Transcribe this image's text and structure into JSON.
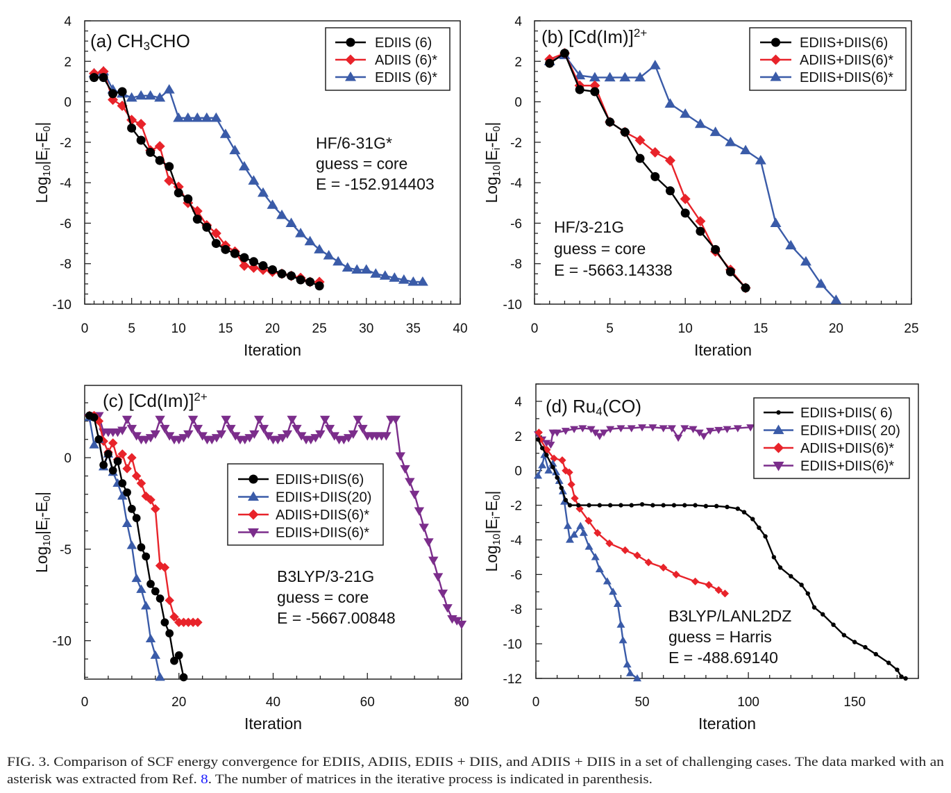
{
  "chart_data": [
    {
      "type": "line",
      "panel": "(a)",
      "title": {
        "pre": "(a) CH",
        "sub": "3",
        "post": "CHO"
      },
      "xlabel": "Iteration",
      "ylabel": {
        "a": "Log",
        "b": "10",
        "c": "|E",
        "d": "i",
        "e": "-E",
        "f": "0",
        "g": "|"
      },
      "xlim": [
        0,
        40
      ],
      "ylim": [
        -10,
        4
      ],
      "xticks": [
        "0",
        "5",
        "10",
        "15",
        "20",
        "25",
        "30",
        "35",
        "40"
      ],
      "yticks": [
        "-10",
        "-8",
        "-6",
        "-4",
        "-2",
        "0",
        "2",
        "4"
      ],
      "annotation": [
        "HF/6-31G*",
        "guess = core",
        "E = -152.914403"
      ],
      "legend_position": "top-right",
      "series": [
        {
          "name": "EDIIS (6)",
          "color": "#000000",
          "marker": "circle",
          "y": [
            1.2,
            1.2,
            0.4,
            0.5,
            -1.3,
            -1.9,
            -2.5,
            -2.9,
            -3.2,
            -4.5,
            -4.8,
            -5.8,
            -6.2,
            -7.0,
            -7.3,
            -7.5,
            -7.7,
            -7.9,
            -8.1,
            -8.3,
            -8.5,
            -8.6,
            -8.8,
            -8.9,
            -9.1
          ]
        },
        {
          "name": "ADIIS (6)*",
          "color": "#e8232a",
          "marker": "diamond",
          "y": [
            1.4,
            1.5,
            0.1,
            -0.2,
            -0.9,
            -1.1,
            -2.4,
            -2.2,
            -3.9,
            -4.2,
            -5.0,
            -5.4,
            -6.1,
            -6.5,
            -7.1,
            -7.4,
            -8.1,
            -8.2,
            -8.3,
            -8.4,
            -8.5,
            -8.6,
            -8.7,
            -8.9,
            -8.9
          ]
        },
        {
          "name": "EDIIS (6)*",
          "color": "#3a5ba8",
          "marker": "triangle",
          "y": [
            1.4,
            1.5,
            0.6,
            0.4,
            0.2,
            0.3,
            0.3,
            0.2,
            0.6,
            -0.8,
            -0.8,
            -0.8,
            -0.8,
            -0.8,
            -1.6,
            -2.4,
            -3.2,
            -3.9,
            -4.5,
            -5.1,
            -5.6,
            -6.0,
            -6.5,
            -6.9,
            -7.3,
            -7.6,
            -7.9,
            -8.2,
            -8.3,
            -8.3,
            -8.5,
            -8.6,
            -8.7,
            -8.8,
            -8.9,
            -8.9
          ]
        }
      ]
    },
    {
      "type": "line",
      "panel": "(b)",
      "title": {
        "pre": "(b) [Cd(Im)]",
        "sup": "2+"
      },
      "xlabel": "Iteration",
      "ylabel": {
        "a": "Log",
        "b": "10",
        "c": "|E",
        "d": "i",
        "e": "-E",
        "f": "0",
        "g": "|"
      },
      "xlim": [
        0,
        25
      ],
      "ylim": [
        -10,
        4
      ],
      "xticks": [
        "0",
        "5",
        "10",
        "15",
        "20",
        "25"
      ],
      "yticks": [
        "-10",
        "-8",
        "-6",
        "-4",
        "-2",
        "0",
        "2",
        "4"
      ],
      "annotation": [
        "HF/3-21G",
        "guess = core",
        "E = -5663.14338"
      ],
      "legend_position": "top-right",
      "series": [
        {
          "name": "EDIIS+DIIS(6)",
          "color": "#000000",
          "marker": "circle",
          "y": [
            1.9,
            2.4,
            0.6,
            0.5,
            -1.0,
            -1.5,
            -2.8,
            -3.7,
            -4.4,
            -5.5,
            -6.4,
            -7.3,
            -8.4,
            -9.2
          ]
        },
        {
          "name": "ADIIS+DIIS(6)*",
          "color": "#e8232a",
          "marker": "diamond",
          "y": [
            2.1,
            2.4,
            0.8,
            0.8,
            -1.0,
            -1.5,
            -1.9,
            -2.5,
            -2.9,
            -4.8,
            -5.9,
            -7.4,
            -8.3,
            -9.2
          ]
        },
        {
          "name": "EDIIS+DIIS(6)*",
          "color": "#3a5ba8",
          "marker": "triangle",
          "y": [
            2.0,
            2.3,
            1.3,
            1.2,
            1.2,
            1.2,
            1.2,
            1.8,
            -0.1,
            -0.6,
            -1.1,
            -1.5,
            -2.0,
            -2.4,
            -2.9,
            -6.0,
            -7.1,
            -7.9,
            -9.0,
            -9.8
          ]
        }
      ]
    },
    {
      "type": "line",
      "panel": "(c)",
      "title": {
        "pre": "(c) [Cd(Im)]",
        "sup": "2+"
      },
      "xlabel": "Iteration",
      "ylabel": {
        "a": "Log",
        "b": "10",
        "c": "|E",
        "d": "i",
        "e": "-E",
        "f": "0",
        "g": "|"
      },
      "xlim": [
        0,
        80
      ],
      "ylim": [
        -12.1,
        3.95
      ],
      "xticks": [
        "0",
        "20",
        "40",
        "60",
        "80"
      ],
      "yticks": [
        "-10",
        "-5",
        "0"
      ],
      "annotation": [
        "B3LYP/3-21G",
        "guess = core",
        "E = -5667.00848"
      ],
      "legend_position": "center",
      "series": [
        {
          "name": "EDIIS+DIIS(6)",
          "color": "#000000",
          "marker": "circle",
          "y": [
            2.3,
            2.2,
            1.0,
            -0.4,
            0.2,
            -0.7,
            -0.2,
            -1.4,
            -1.9,
            -2.8,
            -3.3,
            -4.9,
            -5.4,
            -6.9,
            -7.3,
            -7.7,
            -9.0,
            -9.6,
            -11.1,
            -10.8,
            -12.0
          ]
        },
        {
          "name": "EDIIS+DIIS(20)",
          "color": "#3a5ba8",
          "marker": "triangle",
          "y": [
            2.2,
            0.7,
            1.0,
            -0.5,
            0.2,
            -0.8,
            -1.4,
            -2.1,
            -3.6,
            -4.8,
            -6.6,
            -7.2,
            -8.1,
            -9.9,
            -10.8,
            -12.0
          ]
        },
        {
          "name": "ADIIS+DIIS(6)*",
          "color": "#e8232a",
          "marker": "diamond",
          "y": [
            2.3,
            2.3,
            2.0,
            0.9,
            0.3,
            0.8,
            -0.1,
            0.2,
            -0.6,
            0.0,
            -1.0,
            -1.4,
            -2.1,
            -2.3,
            -2.8,
            -5.9,
            -6.0,
            -7.8,
            -8.7,
            -9.0,
            -9.0,
            -9.0,
            -9.0,
            -9.0
          ]
        },
        {
          "name": "EDIIS+DIIS(6)*",
          "color": "#7b2d8b",
          "marker": "triangle-down",
          "y": [
            2.2,
            2.3,
            2.3,
            1.4,
            1.4,
            1.4,
            1.4,
            1.5,
            2.1,
            1.6,
            1.2,
            1.0,
            1.0,
            1.1,
            1.3,
            2.1,
            1.6,
            1.2,
            1.0,
            1.0,
            1.1,
            1.3,
            2.1,
            1.6,
            1.2,
            1.0,
            1.0,
            1.1,
            1.3,
            2.1,
            1.6,
            1.2,
            1.0,
            1.0,
            1.1,
            1.3,
            2.1,
            1.6,
            1.2,
            1.0,
            1.0,
            1.1,
            1.3,
            2.1,
            1.6,
            1.2,
            1.0,
            1.0,
            1.1,
            1.3,
            2.1,
            1.6,
            1.2,
            1.0,
            1.0,
            1.1,
            1.3,
            2.1,
            1.6,
            1.2,
            1.2,
            1.2,
            1.2,
            1.2,
            2.1,
            2.1,
            0.1,
            -0.6,
            -1.3,
            -2.0,
            -2.9,
            -3.8,
            -4.6,
            -5.6,
            -6.5,
            -7.4,
            -8.2,
            -8.8,
            -8.9,
            -9.1
          ]
        }
      ]
    },
    {
      "type": "line",
      "panel": "(d)",
      "title": {
        "pre": "(d) Ru",
        "sub": "4",
        "post": "(CO)"
      },
      "xlabel": "Iteration",
      "ylabel": {
        "a": "Log",
        "b": "10",
        "c": "|E",
        "d": "i",
        "e": "-E",
        "f": "0",
        "g": "|"
      },
      "xlim": [
        0,
        180
      ],
      "ylim": [
        -12,
        5
      ],
      "xticks": [
        "0",
        "50",
        "100",
        "150"
      ],
      "yticks": [
        "-12",
        "-10",
        "-8",
        "-6",
        "-4",
        "-2",
        "0",
        "2",
        "4"
      ],
      "annotation": [
        "B3LYP/LANL2DZ",
        "guess = Harris",
        "E = -488.69140"
      ],
      "legend_position": "top-right",
      "series": [
        {
          "name": "EDIIS+DIIS( 6)",
          "color": "#000000",
          "marker": "small-circle",
          "points": [
            [
              1,
              1.8
            ],
            [
              3,
              1.3
            ],
            [
              5,
              0.9
            ],
            [
              8,
              0.2
            ],
            [
              10,
              -0.4
            ],
            [
              12,
              -1.0
            ],
            [
              14,
              -1.7
            ],
            [
              16,
              -2.0
            ],
            [
              20,
              -2.0
            ],
            [
              25,
              -2.0
            ],
            [
              30,
              -2.0
            ],
            [
              35,
              -2.0
            ],
            [
              40,
              -2.0
            ],
            [
              45,
              -2.0
            ],
            [
              50,
              -1.95
            ],
            [
              55,
              -2.0
            ],
            [
              60,
              -2.0
            ],
            [
              65,
              -2.0
            ],
            [
              70,
              -2.0
            ],
            [
              75,
              -2.0
            ],
            [
              80,
              -2.05
            ],
            [
              85,
              -2.05
            ],
            [
              90,
              -2.1
            ],
            [
              95,
              -2.2
            ],
            [
              98,
              -2.4
            ],
            [
              102,
              -2.8
            ],
            [
              105,
              -3.3
            ],
            [
              108,
              -3.8
            ],
            [
              112,
              -5.0
            ],
            [
              115,
              -5.6
            ],
            [
              120,
              -6.1
            ],
            [
              125,
              -6.6
            ],
            [
              128,
              -7.1
            ],
            [
              131,
              -7.9
            ],
            [
              135,
              -8.3
            ],
            [
              140,
              -8.9
            ],
            [
              145,
              -9.5
            ],
            [
              150,
              -9.9
            ],
            [
              155,
              -10.2
            ],
            [
              160,
              -10.6
            ],
            [
              166,
              -11.1
            ],
            [
              170,
              -11.5
            ],
            [
              172,
              -11.9
            ],
            [
              174,
              -12.0
            ]
          ]
        },
        {
          "name": "EDIIS+DIIS( 20)",
          "color": "#3a5ba8",
          "marker": "triangle",
          "points": [
            [
              1,
              -0.3
            ],
            [
              3,
              0.3
            ],
            [
              4,
              0.9
            ],
            [
              6,
              0.0
            ],
            [
              8,
              0.4
            ],
            [
              9.5,
              -0.1
            ],
            [
              11,
              -0.6
            ],
            [
              12.7,
              -1.2
            ],
            [
              13.4,
              -1.8
            ],
            [
              15,
              -3.2
            ],
            [
              16,
              -4.0
            ],
            [
              18,
              -3.7
            ],
            [
              21,
              -3.2
            ],
            [
              22.5,
              -3.6
            ],
            [
              25,
              -4.4
            ],
            [
              28,
              -5.0
            ],
            [
              30,
              -5.7
            ],
            [
              33.6,
              -6.4
            ],
            [
              36.3,
              -7.0
            ],
            [
              38.5,
              -7.7
            ],
            [
              40,
              -8.9
            ],
            [
              41,
              -9.8
            ],
            [
              43,
              -11.2
            ],
            [
              44.4,
              -11.7
            ],
            [
              47.7,
              -12.0
            ]
          ]
        },
        {
          "name": "ADIIS+DIIS(6)*",
          "color": "#e8232a",
          "marker": "diamond",
          "points": [
            [
              1.4,
              2.2
            ],
            [
              2,
              1.8
            ],
            [
              5.2,
              1.2
            ],
            [
              8.5,
              0.7
            ],
            [
              12.4,
              0.6
            ],
            [
              14,
              0.0
            ],
            [
              15.7,
              -0.1
            ],
            [
              16.7,
              -0.8
            ],
            [
              18.3,
              -1.6
            ],
            [
              20.6,
              -2.2
            ],
            [
              24.8,
              -2.9
            ],
            [
              29,
              -3.6
            ],
            [
              34.6,
              -4.2
            ],
            [
              42,
              -4.6
            ],
            [
              47.7,
              -4.9
            ],
            [
              53,
              -5.3
            ],
            [
              60,
              -5.6
            ],
            [
              66,
              -6.0
            ],
            [
              75,
              -6.4
            ],
            [
              81.4,
              -6.6
            ],
            [
              86,
              -6.9
            ],
            [
              89,
              -7.1
            ]
          ]
        },
        {
          "name": "EDIIS+DIIS(6)*",
          "color": "#7b2d8b",
          "marker": "triangle-down",
          "points": [
            [
              1,
              2.1
            ],
            [
              3,
              1.8
            ],
            [
              5,
              1.6
            ],
            [
              7,
              1.5
            ],
            [
              8,
              2.2
            ],
            [
              10,
              2.2
            ],
            [
              14,
              2.3
            ],
            [
              18,
              2.4
            ],
            [
              22,
              2.45
            ],
            [
              26,
              2.4
            ],
            [
              28,
              2.2
            ],
            [
              30,
              2.0
            ],
            [
              32,
              2.2
            ],
            [
              35,
              2.4
            ],
            [
              40,
              2.45
            ],
            [
              45,
              2.45
            ],
            [
              50,
              2.5
            ],
            [
              55,
              2.5
            ],
            [
              60,
              2.45
            ],
            [
              64,
              2.45
            ],
            [
              67,
              1.9
            ],
            [
              70,
              2.45
            ],
            [
              74,
              2.4
            ],
            [
              77,
              2.2
            ],
            [
              79,
              2.0
            ],
            [
              82,
              2.3
            ],
            [
              86,
              2.35
            ],
            [
              90,
              2.4
            ],
            [
              95,
              2.45
            ],
            [
              101,
              2.5
            ]
          ]
        }
      ]
    }
  ],
  "caption": {
    "line1": "FIG. 3.  Comparison of SCF energy convergence for EDIIS, ADIIS, EDIIS + DIIS, and ADIIS + DIIS in a set of challenging cases. The data marked with an",
    "line2_pre": "asterisk was extracted from Ref. ",
    "line2_ref": "8",
    "line2_post": ". The number of matrices in the iterative process is indicated in parenthesis.",
    "ref_color": "#1a1aff"
  }
}
